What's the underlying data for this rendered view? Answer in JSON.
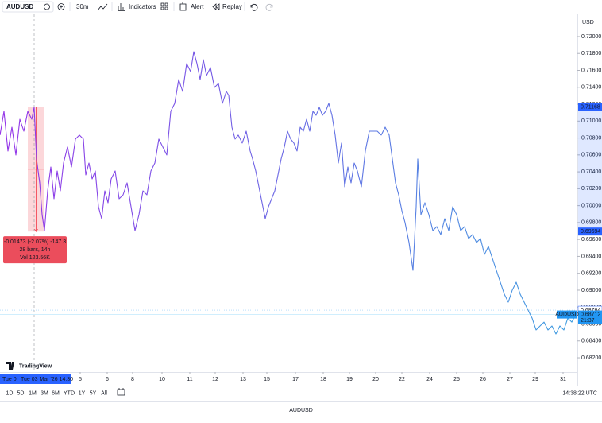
{
  "toolbar": {
    "symbol": "AUDUSD",
    "interval": "30m",
    "indicators": "Indicators",
    "alert": "Alert",
    "replay": "Replay"
  },
  "chart_data": {
    "type": "line",
    "currency": "USD",
    "x": [
      0,
      5,
      10,
      15,
      20,
      25,
      30,
      35,
      40,
      43,
      46,
      50,
      53,
      56,
      60,
      64,
      68,
      72,
      76,
      80,
      85,
      90,
      95,
      100,
      105,
      108,
      112,
      116,
      120,
      124,
      128,
      132,
      136,
      140,
      145,
      150,
      155,
      160,
      165,
      170,
      175,
      180,
      185,
      190,
      195,
      200,
      205,
      210,
      215,
      220,
      225,
      230,
      235,
      240,
      244,
      248,
      252,
      256,
      260,
      265,
      270,
      275,
      280,
      285,
      288,
      292,
      296,
      300,
      305,
      310,
      315,
      318,
      322,
      326,
      330,
      334,
      338,
      342,
      346,
      350,
      354,
      358,
      362,
      366,
      370,
      374,
      378,
      382,
      386,
      390,
      394,
      398,
      402,
      406,
      410,
      414,
      418,
      422,
      426,
      430,
      434,
      438,
      442,
      446,
      450,
      455,
      460,
      465,
      470,
      475,
      480,
      485,
      490,
      494,
      498,
      502,
      506,
      510,
      515,
      520,
      524,
      526,
      530,
      535,
      540,
      545,
      550,
      555,
      560,
      565,
      570,
      575,
      580,
      585,
      590,
      595,
      600,
      605,
      610,
      615,
      620,
      625,
      630,
      635,
      640,
      645,
      650,
      655,
      660,
      665,
      670,
      675,
      680,
      685,
      690,
      695,
      700,
      705,
      710,
      715,
      720,
      725
    ],
    "series": [
      {
        "name": "AUDUSD",
        "colors": [
          "#9433e8",
          "#3f9fe0"
        ],
        "values": [
          0.70834,
          0.71116,
          0.70646,
          0.70928,
          0.70599,
          0.71022,
          0.70881,
          0.71116,
          0.71022,
          0.71163,
          0.70552,
          0.70269,
          0.69893,
          0.69705,
          0.70175,
          0.70457,
          0.70081,
          0.7041,
          0.70175,
          0.70504,
          0.70693,
          0.70457,
          0.70787,
          0.70834,
          0.70787,
          0.70363,
          0.70504,
          0.70316,
          0.7041,
          0.69987,
          0.69846,
          0.70175,
          0.70034,
          0.70316,
          0.7041,
          0.70081,
          0.70128,
          0.70269,
          0.69987,
          0.69705,
          0.69893,
          0.70175,
          0.70128,
          0.7041,
          0.70504,
          0.70787,
          0.70693,
          0.70599,
          0.71116,
          0.7121,
          0.71492,
          0.71351,
          0.7168,
          0.71586,
          0.71821,
          0.7168,
          0.71492,
          0.71727,
          0.71539,
          0.71633,
          0.71398,
          0.71445,
          0.7121,
          0.71351,
          0.71304,
          0.70928,
          0.70787,
          0.70834,
          0.7074,
          0.70881,
          0.70646,
          0.70552,
          0.7041,
          0.70222,
          0.70034,
          0.69846,
          0.69987,
          0.70081,
          0.70175,
          0.70363,
          0.70552,
          0.70693,
          0.70881,
          0.70787,
          0.7074,
          0.70646,
          0.70928,
          0.70881,
          0.71022,
          0.70881,
          0.71116,
          0.71069,
          0.71163,
          0.71069,
          0.71116,
          0.7121,
          0.71069,
          0.70834,
          0.70504,
          0.7074,
          0.70222,
          0.70457,
          0.70269,
          0.70504,
          0.7041,
          0.70222,
          0.70646,
          0.70881,
          0.70881,
          0.70881,
          0.70834,
          0.70928,
          0.70834,
          0.70552,
          0.70269,
          0.70128,
          0.6994,
          0.69799,
          0.69564,
          0.69235,
          0.69987,
          0.70552,
          0.69893,
          0.70034,
          0.69893,
          0.69705,
          0.69752,
          0.69658,
          0.69846,
          0.69705,
          0.69987,
          0.69893,
          0.69705,
          0.69752,
          0.69611,
          0.69658,
          0.69564,
          0.69611,
          0.69423,
          0.69517,
          0.69376,
          0.69235,
          0.69094,
          0.68953,
          0.68859,
          0.69,
          0.69094,
          0.68953,
          0.68859,
          0.68764,
          0.6867,
          0.68529,
          0.68576,
          0.68623,
          0.68529,
          0.68576,
          0.68482,
          0.68576,
          0.68529,
          0.6867,
          0.68623,
          0.68717
        ]
      }
    ],
    "xlim": [
      0,
      727
    ],
    "xticks": [
      {
        "value": 101,
        "label": "5"
      },
      {
        "value": 135,
        "label": "6"
      },
      {
        "value": 167,
        "label": "8"
      },
      {
        "value": 204,
        "label": "10"
      },
      {
        "value": 239,
        "label": "11"
      },
      {
        "value": 271,
        "label": "12"
      },
      {
        "value": 306,
        "label": "13"
      },
      {
        "value": 336,
        "label": "15"
      },
      {
        "value": 372,
        "label": "17"
      },
      {
        "value": 407,
        "label": "18"
      },
      {
        "value": 440,
        "label": "19"
      },
      {
        "value": 473,
        "label": "20"
      },
      {
        "value": 506,
        "label": "22"
      },
      {
        "value": 541,
        "label": "24"
      },
      {
        "value": 575,
        "label": "25"
      },
      {
        "value": 608,
        "label": "26"
      },
      {
        "value": 642,
        "label": "27"
      },
      {
        "value": 674,
        "label": "29"
      },
      {
        "value": 709,
        "label": "31"
      }
    ],
    "ylim": [
      0.68031,
      0.72263
    ],
    "yticks": [
      {
        "value": 0.682,
        "label": "0.68200"
      },
      {
        "value": 0.684,
        "label": "0.68400"
      },
      {
        "value": 0.686,
        "label": "0.68600"
      },
      {
        "value": 0.688,
        "label": "0.68800"
      },
      {
        "value": 0.69,
        "label": "0.69000"
      },
      {
        "value": 0.692,
        "label": "0.69200"
      },
      {
        "value": 0.694,
        "label": "0.69400"
      },
      {
        "value": 0.696,
        "label": "0.69600"
      },
      {
        "value": 0.698,
        "label": "0.69800"
      },
      {
        "value": 0.7,
        "label": "0.70000"
      },
      {
        "value": 0.702,
        "label": "0.70200"
      },
      {
        "value": 0.704,
        "label": "0.70400"
      },
      {
        "value": 0.706,
        "label": "0.70600"
      },
      {
        "value": 0.708,
        "label": "0.70800"
      },
      {
        "value": 0.71,
        "label": "0.71000"
      },
      {
        "value": 0.712,
        "label": "0.71200"
      },
      {
        "value": 0.714,
        "label": "0.71400"
      },
      {
        "value": 0.716,
        "label": "0.71600"
      },
      {
        "value": 0.718,
        "label": "0.71800"
      },
      {
        "value": 0.72,
        "label": "0.72000"
      }
    ],
    "measure": {
      "x_start": 35,
      "x_end": 56,
      "from": {
        "value": 0.71168,
        "label": "0.71168"
      },
      "to": {
        "value": 0.69694,
        "label": "0.69694"
      },
      "lines": [
        "-0.01473 (-2.07%) -147.3",
        "28 bars, 14h",
        "Vol 123.56K"
      ]
    },
    "crosshair_x": 43,
    "crosshair_labels": [
      "Tue 0",
      "Tue 03 Mar '26  14:30"
    ],
    "last_close": {
      "value": 0.68764,
      "label": "0.68764"
    },
    "last_price": {
      "value": 0.68712,
      "label": "0.68712",
      "symbol": "AUDUSD",
      "countdown": "21:37"
    }
  },
  "brand": "TradingView",
  "ranges": [
    "1D",
    "5D",
    "1M",
    "3M",
    "6M",
    "YTD",
    "1Y",
    "5Y",
    "All"
  ],
  "clock": "14:38:22 UTC",
  "caption": "AUDUSD"
}
